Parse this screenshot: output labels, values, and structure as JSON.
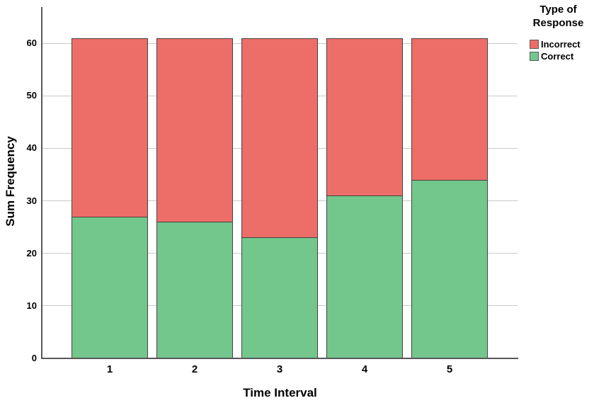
{
  "chart_data": {
    "type": "bar",
    "variant": "stacked-vertical",
    "title": "",
    "categories": [
      "1",
      "2",
      "3",
      "4",
      "5"
    ],
    "series": [
      {
        "name": "Correct",
        "color": "#73C78C",
        "values": [
          27,
          26,
          23,
          31,
          34
        ]
      },
      {
        "name": "Incorrect",
        "color": "#ED6E68",
        "values": [
          34,
          35,
          38,
          30,
          27
        ]
      }
    ],
    "stack_totals": [
      61,
      61,
      61,
      61,
      61
    ],
    "xlabel": "Time Interval",
    "ylabel": "Sum Frequency",
    "ylim": [
      0,
      65
    ],
    "yticks": [
      0,
      10,
      20,
      30,
      40,
      50,
      60
    ],
    "grid": "horizontal-only",
    "legend": {
      "title": "Type of Response",
      "position": "top-right",
      "items": [
        {
          "label": "Incorrect",
          "color": "#ED6E68"
        },
        {
          "label": "Correct",
          "color": "#73C78C"
        }
      ]
    }
  },
  "colors": {
    "incorrect": "#ED6E68",
    "correct": "#73C78C",
    "bar_outline": "#474140",
    "gridline": "#C9C9C9",
    "axis": "#58585A",
    "text": "#000000",
    "background": "#FFFFFF"
  }
}
